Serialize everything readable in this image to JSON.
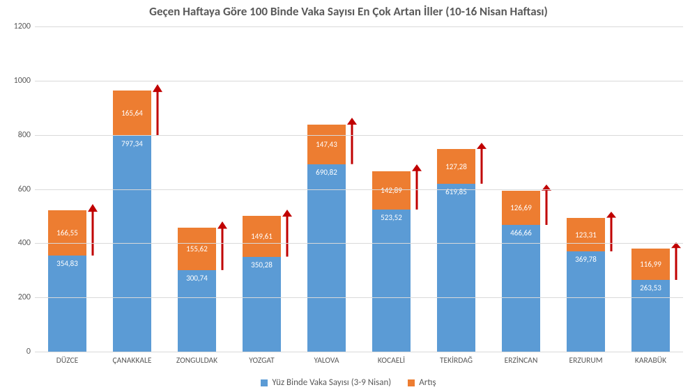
{
  "chart": {
    "type": "stacked-bar",
    "title": "Geçen Haftaya Göre 100 Binde Vaka Sayısı En Çok Artan İller (10-16 Nisan Haftası)",
    "title_fontsize": 17,
    "title_color": "#595959",
    "background_color": "#ffffff",
    "grid_color": "#d9d9d9",
    "axis_text_color": "#595959",
    "axis_fontsize": 12,
    "category_fontsize": 11.5,
    "value_label_color": "#ffffff",
    "value_label_fontsize": 11,
    "ylim": [
      0,
      1200
    ],
    "ytick_step": 200,
    "yticks": [
      "0",
      "200",
      "400",
      "600",
      "800",
      "1000",
      "1200"
    ],
    "bar_width_ratio": 0.6,
    "arrow_color": "#c00000",
    "series": [
      {
        "key": "base",
        "label": "Yüz Binde Vaka Sayısı (3-9 Nisan)",
        "color": "#5b9bd5"
      },
      {
        "key": "increase",
        "label": "Artış",
        "color": "#ed7d31"
      }
    ],
    "categories": [
      "DÜZCE",
      "ÇANAKKALE",
      "ZONGULDAK",
      "YOZGAT",
      "YALOVA",
      "KOCAELİ",
      "TEKİRDAĞ",
      "ERZİNCAN",
      "ERZURUM",
      "KARABÜK"
    ],
    "data": [
      {
        "base": 354.83,
        "increase": 166.55,
        "base_label": "354,83",
        "increase_label": "166,55"
      },
      {
        "base": 797.34,
        "increase": 165.64,
        "base_label": "797,34",
        "increase_label": "165,64"
      },
      {
        "base": 300.74,
        "increase": 155.62,
        "base_label": "300,74",
        "increase_label": "155,62"
      },
      {
        "base": 350.28,
        "increase": 149.61,
        "base_label": "350,28",
        "increase_label": "149,61"
      },
      {
        "base": 690.82,
        "increase": 147.43,
        "base_label": "690,82",
        "increase_label": "147,43"
      },
      {
        "base": 523.52,
        "increase": 142.89,
        "base_label": "523,52",
        "increase_label": "142,89"
      },
      {
        "base": 619.85,
        "increase": 127.28,
        "base_label": "619,85",
        "increase_label": "127,28"
      },
      {
        "base": 466.66,
        "increase": 126.69,
        "base_label": "466,66",
        "increase_label": "126,69"
      },
      {
        "base": 369.78,
        "increase": 123.31,
        "base_label": "369,78",
        "increase_label": "123,31"
      },
      {
        "base": 263.53,
        "increase": 116.99,
        "base_label": "263,53",
        "increase_label": "116,99"
      }
    ]
  }
}
